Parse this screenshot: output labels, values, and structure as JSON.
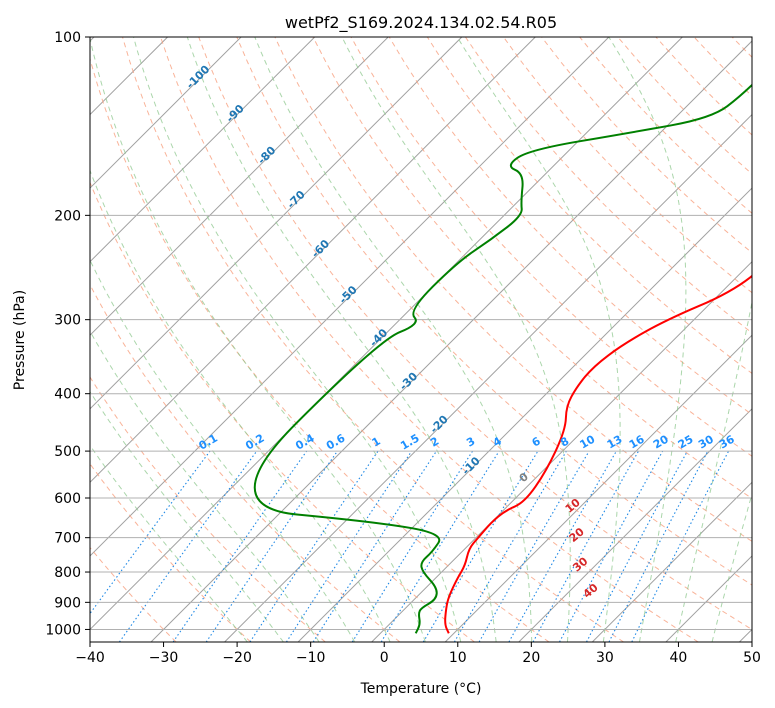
{
  "chart_data": {
    "type": "line",
    "subtype": "skew-T log-P diagram",
    "title": "wetPf2_S169.2024.134.02.54.R05",
    "xlabel": "Temperature (°C)",
    "ylabel": "Pressure (hPa)",
    "xlim": [
      -40,
      50
    ],
    "ylim": [
      1050,
      100
    ],
    "y_scale": "log",
    "grid": true,
    "x_ticks": [
      "−40",
      "−30",
      "−20",
      "−10",
      "0",
      "10",
      "20",
      "30",
      "40",
      "50"
    ],
    "x_tick_values": [
      -40,
      -30,
      -20,
      -10,
      0,
      10,
      20,
      30,
      40,
      50
    ],
    "y_ticks": [
      "100",
      "200",
      "300",
      "400",
      "500",
      "600",
      "700",
      "800",
      "900",
      "1000"
    ],
    "y_tick_values": [
      100,
      200,
      300,
      400,
      500,
      600,
      700,
      800,
      900,
      1000
    ],
    "series": [
      {
        "role": "temperature",
        "color": "#ff0000",
        "points": [
          [
            9.3,
            1015
          ],
          [
            7.5,
            980
          ],
          [
            5.5,
            920
          ],
          [
            4.3,
            880
          ],
          [
            3.0,
            820
          ],
          [
            2.3,
            780
          ],
          [
            0.5,
            730
          ],
          [
            0.3,
            700
          ],
          [
            0.0,
            660
          ],
          [
            0.3,
            630
          ],
          [
            1.8,
            610
          ],
          [
            0.5,
            540
          ],
          [
            -2.5,
            460
          ],
          [
            -5.6,
            420
          ],
          [
            -6.8,
            390
          ],
          [
            -7.3,
            360
          ],
          [
            -6.3,
            330
          ],
          [
            -3.7,
            300
          ],
          [
            1.3,
            270
          ],
          [
            2.5,
            240
          ],
          [
            4.5,
            220
          ],
          [
            4.9,
            200
          ],
          [
            6.5,
            180
          ],
          [
            7.7,
            160
          ],
          [
            9.2,
            150
          ],
          [
            8.9,
            140
          ],
          [
            9.2,
            130
          ],
          [
            10.5,
            120
          ],
          [
            12.0,
            110
          ],
          [
            11.8,
            100
          ]
        ]
      },
      {
        "role": "dewpoint",
        "color": "#008000",
        "points": [
          [
            4.8,
            1015
          ],
          [
            4.2,
            980
          ],
          [
            2.5,
            940
          ],
          [
            2.1,
            920
          ],
          [
            3.0,
            890
          ],
          [
            1.5,
            850
          ],
          [
            -2.6,
            800
          ],
          [
            -4.2,
            770
          ],
          [
            -4.0,
            740
          ],
          [
            -4.8,
            690
          ],
          [
            -15.0,
            660
          ],
          [
            -40.0,
            620
          ],
          [
            -40.0,
            325
          ],
          [
            -36.6,
            305
          ],
          [
            -40.0,
            290
          ],
          [
            -40.0,
            240
          ],
          [
            -38.5,
            220
          ],
          [
            -37.5,
            200
          ],
          [
            -39.5,
            190
          ],
          [
            -43.0,
            170
          ],
          [
            -46.5,
            165
          ],
          [
            -45.5,
            155
          ],
          [
            -34.0,
            145
          ],
          [
            -25.0,
            137
          ],
          [
            -24.0,
            125
          ],
          [
            -24.0,
            110
          ],
          [
            -22.5,
            100
          ]
        ]
      }
    ],
    "annotations": {
      "mixing_ratio_lines": [
        "0.1",
        "0.2",
        "0.4",
        "0.6",
        "1",
        "1.5",
        "2",
        "3",
        "4",
        "6",
        "8",
        "10",
        "13",
        "16",
        "20",
        "25",
        "30",
        "36"
      ],
      "dry_adiabat_labels": [
        "-100",
        "-90",
        "-80",
        "-70",
        "-60",
        "-50",
        "-40",
        "-30",
        "-20",
        "-10"
      ],
      "moist_adiabat_labels": [
        "0",
        "10",
        "20",
        "30",
        "40"
      ]
    },
    "reference_line_colors": {
      "isotherm": "#a0a0a0",
      "dry_adiabat": "#f7a080",
      "moist_adiabat": "#8fc88f",
      "mixing_ratio": "#1e88e5",
      "dry_adiabat_label": "#1f77b4",
      "mixing_ratio_label": "#1e90ff",
      "moist_adiabat_label": "#d62728",
      "zero_label": "#808080"
    }
  }
}
